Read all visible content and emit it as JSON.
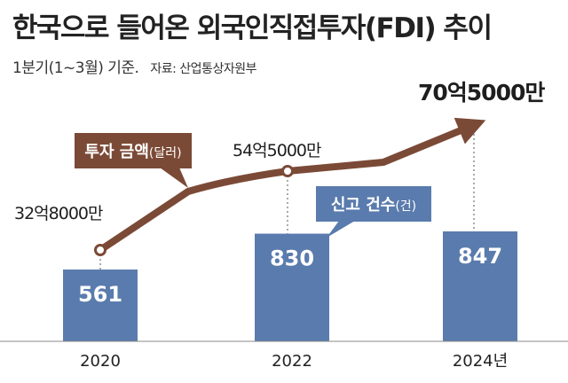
{
  "title": "한국으로 들어온 외국인직접투자(FDI) 추이",
  "subtitle": "1분기(1~3월) 기준.",
  "source": "자료: 산업통상자원부",
  "colors": {
    "bar": "#5a7bad",
    "line": "#7b4a36",
    "legend_amount_bg": "#7b4a36",
    "legend_count_bg": "#5a7bad"
  },
  "legend": {
    "amount": {
      "label": "투자 금액",
      "unit": "(달러)"
    },
    "count": {
      "label": "신고 건수",
      "unit": "(건)"
    }
  },
  "chart_data": {
    "type": "bar",
    "categories": [
      "2020",
      "2022",
      "2024"
    ],
    "category_labels": [
      "2020",
      "2022",
      "2024년"
    ],
    "series": [
      {
        "name": "신고 건수",
        "type": "bar",
        "values": [
          561,
          830,
          847
        ],
        "labels": [
          "561",
          "830",
          "847"
        ]
      },
      {
        "name": "투자 금액",
        "type": "line",
        "values": [
          3280000000,
          5450000000,
          7050000000
        ],
        "labels": [
          "32억8000만",
          "54억5000만",
          "70억5000만"
        ]
      }
    ]
  }
}
